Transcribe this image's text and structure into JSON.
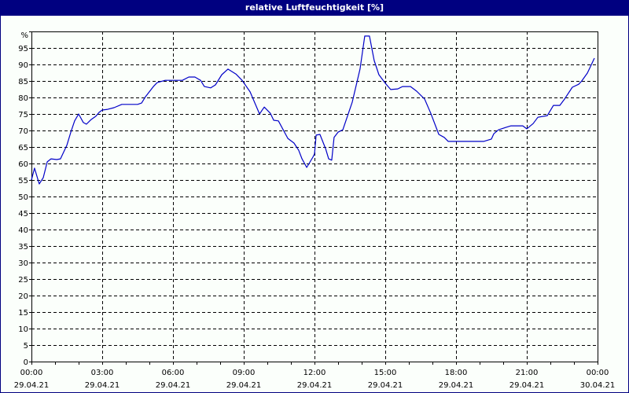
{
  "window": {
    "title": "relative Luftfeuchtigkeit [%]"
  },
  "colors": {
    "titlebar": "#000080",
    "line": "#0000c8",
    "grid": "#000000",
    "background": "#fbfffb"
  },
  "chart_data": {
    "type": "line",
    "title": "relative Luftfeuchtigkeit [%]",
    "xlabel": "",
    "ylabel": "%",
    "ylim": [
      0,
      100
    ],
    "y_ticks": [
      "0",
      "5",
      "10",
      "15",
      "20",
      "25",
      "30",
      "35",
      "40",
      "45",
      "50",
      "55",
      "60",
      "65",
      "70",
      "75",
      "80",
      "85",
      "90",
      "95",
      "%"
    ],
    "x_ticks": [
      {
        "time": "00:00",
        "date": "29.04.21"
      },
      {
        "time": "03:00",
        "date": "29.04.21"
      },
      {
        "time": "06:00",
        "date": "29.04.21"
      },
      {
        "time": "09:00",
        "date": "29.04.21"
      },
      {
        "time": "12:00",
        "date": "29.04.21"
      },
      {
        "time": "15:00",
        "date": "29.04.21"
      },
      {
        "time": "18:00",
        "date": "29.04.21"
      },
      {
        "time": "21:00",
        "date": "29.04.21"
      },
      {
        "time": "00:00",
        "date": "30.04.21"
      }
    ],
    "xlim_hours": [
      0,
      24
    ],
    "grid": true,
    "legend": null,
    "series": [
      {
        "name": "relative Luftfeuchtigkeit",
        "x_hours": [
          0,
          0.13,
          0.33,
          0.5,
          0.67,
          0.83,
          1.07,
          1.23,
          1.5,
          1.67,
          1.83,
          2.0,
          2.2,
          2.33,
          2.53,
          2.73,
          2.87,
          3.0,
          3.23,
          3.5,
          3.83,
          4.5,
          4.67,
          4.83,
          5.17,
          5.33,
          5.67,
          6.0,
          6.4,
          6.67,
          6.93,
          7.17,
          7.33,
          7.6,
          7.8,
          8.07,
          8.33,
          8.67,
          8.93,
          9.27,
          9.67,
          9.87,
          10.13,
          10.27,
          10.47,
          10.87,
          11.13,
          11.33,
          11.47,
          11.67,
          11.93,
          12.0,
          12.07,
          12.23,
          12.47,
          12.6,
          12.73,
          12.83,
          13.0,
          13.2,
          13.6,
          13.93,
          14.13,
          14.33,
          14.53,
          14.73,
          15.0,
          15.23,
          15.53,
          15.73,
          16.07,
          16.33,
          16.67,
          16.93,
          17.27,
          17.5,
          17.67,
          19.17,
          19.5,
          19.6,
          19.8,
          20.1,
          20.33,
          20.83,
          21.0,
          21.27,
          21.47,
          21.87,
          22.13,
          22.4,
          22.6,
          22.93,
          23.2,
          23.33,
          23.57,
          23.8,
          24.0,
          24.17
        ],
        "values": [
          55,
          58.6,
          53.8,
          55.7,
          60.5,
          61.4,
          61.2,
          61.4,
          65.5,
          69.5,
          72.9,
          75,
          72.4,
          71.9,
          73.3,
          74.3,
          75.5,
          76.2,
          76.4,
          76.9,
          77.9,
          77.9,
          78.3,
          80.2,
          83.3,
          84.5,
          85.2,
          85.2,
          85.2,
          86.2,
          86.2,
          85.2,
          83.3,
          82.9,
          83.8,
          86.9,
          88.6,
          87.1,
          85.2,
          81.7,
          75,
          77.1,
          75.2,
          73.1,
          72.9,
          67.6,
          66.2,
          64.0,
          61.4,
          58.8,
          61.9,
          62.9,
          68.6,
          68.8,
          64.5,
          61.4,
          61,
          67.9,
          69.5,
          70.2,
          78.6,
          88.6,
          98.6,
          98.6,
          91.2,
          86.9,
          84.3,
          82.4,
          82.6,
          83.3,
          83.3,
          81.9,
          79.5,
          75.2,
          68.8,
          67.9,
          66.7,
          66.7,
          67.4,
          69.0,
          70.2,
          70.9,
          71.4,
          71.4,
          70.5,
          72.1,
          74,
          74.5,
          77.6,
          77.6,
          79.5,
          83.1,
          84.0,
          85.0,
          87.4,
          90.9,
          91.9,
          91.9
        ]
      }
    ]
  }
}
